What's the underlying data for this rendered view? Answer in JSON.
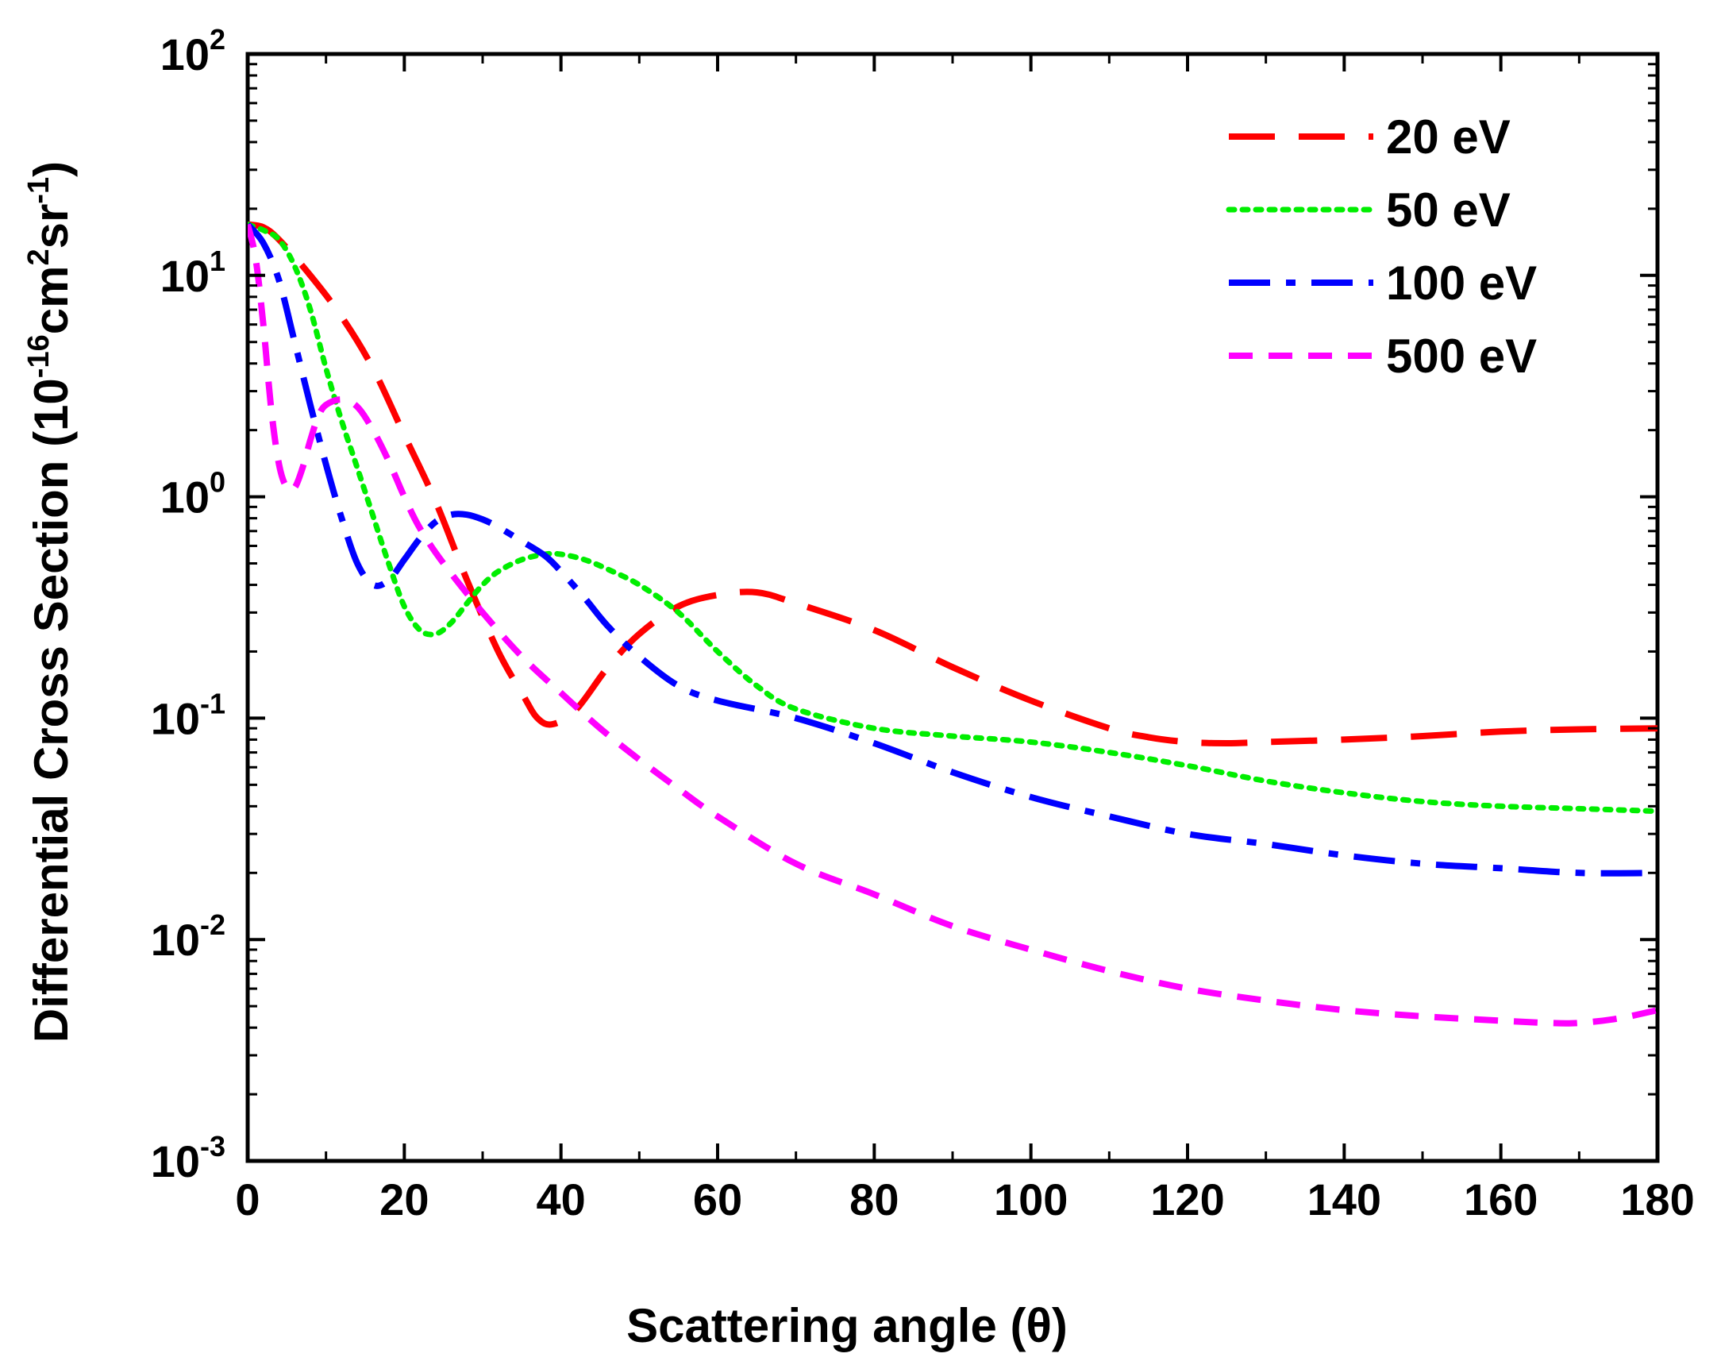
{
  "chart_data": {
    "type": "line",
    "xlabel": "Scattering angle (θ)",
    "ylabel": {
      "prefix": "Differential Cross Section (10",
      "exp1": "-16",
      "mid1": "cm",
      "exp2": "2",
      "mid2": "sr",
      "exp3": "-1",
      "suffix": ")"
    },
    "xlim": [
      0,
      180
    ],
    "ylim_log10": [
      -3,
      2
    ],
    "xticks": [
      0,
      20,
      40,
      60,
      80,
      100,
      120,
      140,
      160,
      180
    ],
    "xtick_labels": [
      "0",
      "20",
      "40",
      "60",
      "80",
      "100",
      "120",
      "140",
      "160",
      "180"
    ],
    "yticks_log10": [
      -3,
      -2,
      -1,
      0,
      1,
      2
    ],
    "ytick_labels": [
      {
        "base": "10",
        "exp": "-3"
      },
      {
        "base": "10",
        "exp": "-2"
      },
      {
        "base": "10",
        "exp": "-1"
      },
      {
        "base": "10",
        "exp": "0"
      },
      {
        "base": "10",
        "exp": "1"
      },
      {
        "base": "10",
        "exp": "2"
      }
    ],
    "legend_position": "top-right",
    "series": [
      {
        "name": "20 eV",
        "color": "#ff0000",
        "style": "dashed",
        "x": [
          0,
          2,
          4,
          8,
          12,
          16,
          20,
          24,
          28,
          32,
          35,
          37,
          39,
          42,
          46,
          50,
          55,
          60,
          65,
          70,
          80,
          90,
          100,
          110,
          115,
          120,
          125,
          130,
          140,
          150,
          160,
          170,
          180
        ],
        "y": [
          17,
          16.5,
          14.5,
          10,
          6.5,
          3.8,
          1.9,
          0.95,
          0.42,
          0.2,
          0.13,
          0.1,
          0.094,
          0.11,
          0.17,
          0.24,
          0.32,
          0.36,
          0.37,
          0.33,
          0.25,
          0.17,
          0.12,
          0.09,
          0.082,
          0.078,
          0.077,
          0.078,
          0.08,
          0.083,
          0.087,
          0.089,
          0.09
        ]
      },
      {
        "name": "50 eV",
        "color": "#00ee00",
        "style": "dotted",
        "x": [
          0,
          2,
          4,
          6,
          8,
          10,
          12,
          14,
          16,
          18,
          20,
          22,
          24,
          26,
          28,
          30,
          32,
          35,
          38,
          40,
          43,
          46,
          50,
          55,
          60,
          65,
          70,
          80,
          90,
          100,
          110,
          120,
          130,
          140,
          150,
          160,
          170,
          180
        ],
        "y": [
          17,
          16,
          14.5,
          11,
          7,
          3.8,
          2.2,
          1.35,
          0.82,
          0.5,
          0.32,
          0.25,
          0.24,
          0.27,
          0.33,
          0.4,
          0.46,
          0.52,
          0.55,
          0.55,
          0.52,
          0.47,
          0.4,
          0.3,
          0.2,
          0.14,
          0.11,
          0.09,
          0.083,
          0.078,
          0.07,
          0.061,
          0.052,
          0.046,
          0.042,
          0.04,
          0.039,
          0.038
        ]
      },
      {
        "name": "100 eV",
        "color": "#0000ff",
        "style": "dash-dot",
        "x": [
          0,
          2,
          4,
          6,
          8,
          10,
          12,
          14,
          16,
          18,
          20,
          22,
          24,
          26,
          28,
          30,
          32,
          35,
          38,
          40,
          43,
          46,
          50,
          55,
          60,
          70,
          80,
          90,
          100,
          110,
          120,
          130,
          140,
          150,
          160,
          170,
          180
        ],
        "y": [
          17,
          14,
          9.5,
          5,
          2.6,
          1.4,
          0.8,
          0.5,
          0.4,
          0.42,
          0.52,
          0.65,
          0.77,
          0.83,
          0.83,
          0.79,
          0.73,
          0.63,
          0.54,
          0.46,
          0.35,
          0.26,
          0.19,
          0.14,
          0.12,
          0.1,
          0.077,
          0.057,
          0.044,
          0.036,
          0.03,
          0.027,
          0.024,
          0.022,
          0.021,
          0.02,
          0.02
        ]
      },
      {
        "name": "500 eV",
        "color": "#ff00ff",
        "style": "short-dash",
        "x": [
          0,
          1,
          2,
          3,
          4,
          5,
          6,
          7,
          8,
          9,
          10,
          12,
          14,
          16,
          18,
          20,
          22,
          25,
          30,
          35,
          40,
          45,
          50,
          55,
          60,
          70,
          80,
          90,
          100,
          110,
          120,
          130,
          140,
          150,
          160,
          166,
          170,
          175,
          180
        ],
        "y": [
          17,
          12,
          6,
          2.5,
          1.4,
          1.1,
          1.1,
          1.35,
          1.8,
          2.3,
          2.6,
          2.75,
          2.55,
          2.0,
          1.45,
          1.0,
          0.72,
          0.5,
          0.3,
          0.19,
          0.13,
          0.09,
          0.065,
          0.048,
          0.036,
          0.022,
          0.016,
          0.0115,
          0.009,
          0.0072,
          0.006,
          0.0053,
          0.0048,
          0.0045,
          0.0043,
          0.0042,
          0.0042,
          0.0044,
          0.0048
        ]
      }
    ]
  }
}
